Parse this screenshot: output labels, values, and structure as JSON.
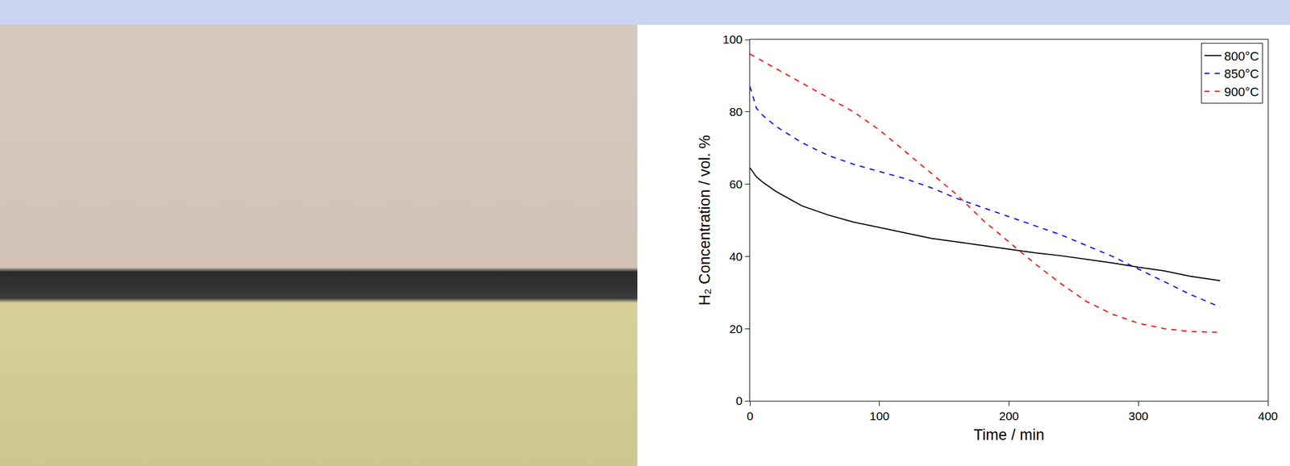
{
  "chart_data": {
    "type": "line",
    "x_label": "Time / min",
    "y_label": "H₂ Concentration / vol. %",
    "x": [
      0,
      5,
      10,
      20,
      40,
      60,
      80,
      100,
      120,
      140,
      160,
      180,
      200,
      220,
      240,
      260,
      280,
      300,
      320,
      340,
      363
    ],
    "series": [
      {
        "name": "800°C",
        "color": "#000000",
        "line_style": "solid",
        "values": [
          64.5,
          62,
          60.5,
          58,
          54,
          51.5,
          49.5,
          48,
          46.5,
          45,
          44,
          43,
          42,
          41,
          40.2,
          39.2,
          38.2,
          37,
          36,
          34.5,
          33.3
        ]
      },
      {
        "name": "850°C",
        "color": "#0000ff",
        "line_style": "dash",
        "values": [
          87,
          81,
          79,
          76,
          71.5,
          68,
          65.5,
          63.5,
          61.5,
          59,
          56,
          53.5,
          51,
          48.5,
          46,
          43,
          40,
          36.5,
          33,
          29.5,
          26
        ]
      },
      {
        "name": "900°C",
        "color": "#ff0000",
        "line_style": "dash",
        "values": [
          96,
          95,
          94,
          92,
          88,
          84,
          80,
          75,
          69,
          63,
          57,
          50,
          44,
          38,
          32.5,
          27.5,
          24,
          21.5,
          20,
          19.2,
          19
        ]
      }
    ],
    "xlim": [
      0,
      400
    ],
    "xticks": [
      0,
      100,
      200,
      300,
      400
    ],
    "ylim": [
      0,
      100
    ],
    "yticks": [
      0,
      20,
      40,
      60,
      80,
      100
    ],
    "grid": false,
    "legend": "top right"
  }
}
